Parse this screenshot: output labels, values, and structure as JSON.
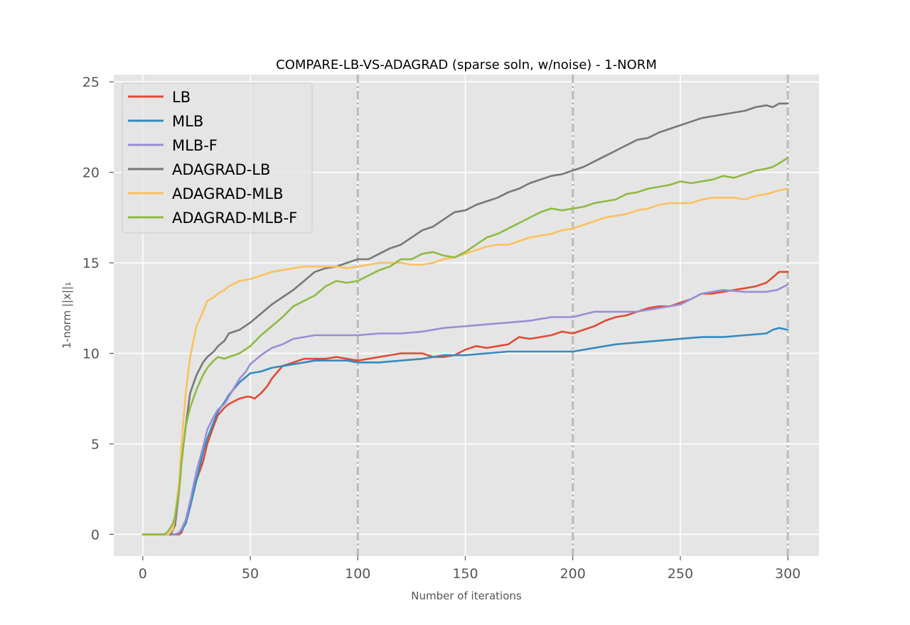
{
  "chart_data": {
    "type": "line",
    "title": "COMPARE-LB-VS-ADAGRAD (sparse soln, w/noise) - 1-NORM",
    "xlabel": "Number of iterations",
    "ylabel": "1-norm ||x||₁",
    "xlim": [
      -13.5,
      314.5
    ],
    "ylim": [
      -1.2,
      25.4
    ],
    "xticks": [
      0,
      50,
      100,
      150,
      200,
      250,
      300
    ],
    "yticks": [
      0,
      5,
      10,
      15,
      20,
      25
    ],
    "vlines": [
      100,
      200,
      300
    ],
    "grid": true,
    "legend_position": "top-left",
    "series": [
      {
        "name": "LB",
        "color": "#E24A33",
        "x": [
          0,
          10,
          15,
          17,
          18,
          20,
          22,
          25,
          28,
          30,
          33,
          35,
          38,
          40,
          45,
          48,
          50,
          52,
          55,
          58,
          60,
          65,
          70,
          75,
          80,
          85,
          90,
          95,
          100,
          105,
          110,
          115,
          120,
          125,
          130,
          135,
          140,
          145,
          150,
          155,
          160,
          165,
          170,
          175,
          180,
          185,
          190,
          195,
          200,
          205,
          210,
          215,
          220,
          225,
          230,
          235,
          240,
          245,
          250,
          255,
          260,
          265,
          270,
          275,
          280,
          285,
          290,
          293,
          296,
          300
        ],
        "y": [
          0,
          0,
          0,
          0,
          0.1,
          0.8,
          1.8,
          3.0,
          4.0,
          5.0,
          6.0,
          6.6,
          7.0,
          7.2,
          7.5,
          7.6,
          7.6,
          7.5,
          7.8,
          8.2,
          8.6,
          9.3,
          9.5,
          9.7,
          9.7,
          9.7,
          9.8,
          9.7,
          9.6,
          9.7,
          9.8,
          9.9,
          10.0,
          10.0,
          10.0,
          9.8,
          9.8,
          9.9,
          10.2,
          10.4,
          10.3,
          10.4,
          10.5,
          10.9,
          10.8,
          10.9,
          11.0,
          11.2,
          11.1,
          11.3,
          11.5,
          11.8,
          12.0,
          12.1,
          12.3,
          12.5,
          12.6,
          12.6,
          12.8,
          13.0,
          13.3,
          13.3,
          13.4,
          13.5,
          13.6,
          13.7,
          13.9,
          14.2,
          14.5,
          14.5
        ]
      },
      {
        "name": "MLB",
        "color": "#348ABD",
        "x": [
          0,
          10,
          15,
          17,
          18,
          20,
          22,
          25,
          28,
          30,
          33,
          35,
          38,
          40,
          45,
          48,
          50,
          55,
          60,
          65,
          70,
          75,
          80,
          85,
          90,
          95,
          100,
          110,
          120,
          130,
          140,
          150,
          160,
          170,
          180,
          190,
          200,
          210,
          220,
          230,
          240,
          250,
          260,
          270,
          280,
          290,
          293,
          296,
          300
        ],
        "y": [
          0,
          0,
          0,
          0.1,
          0.2,
          0.6,
          1.5,
          3.0,
          4.5,
          5.3,
          6.2,
          6.8,
          7.3,
          7.7,
          8.4,
          8.7,
          8.9,
          9.0,
          9.2,
          9.3,
          9.4,
          9.5,
          9.6,
          9.6,
          9.6,
          9.6,
          9.5,
          9.5,
          9.6,
          9.7,
          9.9,
          9.9,
          10.0,
          10.1,
          10.1,
          10.1,
          10.1,
          10.3,
          10.5,
          10.6,
          10.7,
          10.8,
          10.9,
          10.9,
          11.0,
          11.1,
          11.3,
          11.4,
          11.3
        ]
      },
      {
        "name": "MLB-F",
        "color": "#988ED5",
        "x": [
          0,
          10,
          15,
          17,
          18,
          20,
          22,
          25,
          28,
          30,
          33,
          35,
          38,
          40,
          45,
          48,
          50,
          55,
          60,
          65,
          70,
          75,
          80,
          85,
          90,
          95,
          100,
          110,
          120,
          130,
          140,
          150,
          160,
          170,
          180,
          190,
          200,
          210,
          220,
          230,
          240,
          250,
          260,
          270,
          280,
          290,
          295,
          300
        ],
        "y": [
          0,
          0,
          0,
          0.1,
          0.3,
          0.8,
          1.8,
          3.5,
          4.8,
          5.8,
          6.5,
          6.9,
          7.2,
          7.6,
          8.6,
          9.0,
          9.4,
          9.9,
          10.3,
          10.5,
          10.8,
          10.9,
          11.0,
          11.0,
          11.0,
          11.0,
          11.0,
          11.1,
          11.1,
          11.2,
          11.4,
          11.5,
          11.6,
          11.7,
          11.8,
          12.0,
          12.0,
          12.3,
          12.3,
          12.3,
          12.5,
          12.7,
          13.3,
          13.5,
          13.4,
          13.4,
          13.5,
          13.8
        ]
      },
      {
        "name": "ADAGRAD-LB",
        "color": "#777777",
        "x": [
          0,
          10,
          13,
          15,
          17,
          18,
          20,
          22,
          25,
          28,
          30,
          33,
          35,
          38,
          40,
          45,
          50,
          55,
          60,
          65,
          70,
          75,
          80,
          85,
          90,
          95,
          100,
          105,
          110,
          115,
          120,
          125,
          130,
          135,
          140,
          145,
          150,
          155,
          160,
          165,
          170,
          175,
          180,
          185,
          190,
          195,
          200,
          205,
          210,
          215,
          220,
          225,
          230,
          235,
          240,
          245,
          250,
          255,
          260,
          265,
          270,
          275,
          280,
          285,
          290,
          293,
          296,
          300
        ],
        "y": [
          0,
          0,
          0,
          0.5,
          2.5,
          4.0,
          6.0,
          7.8,
          8.8,
          9.5,
          9.8,
          10.1,
          10.4,
          10.7,
          11.1,
          11.3,
          11.7,
          12.2,
          12.7,
          13.1,
          13.5,
          14.0,
          14.5,
          14.7,
          14.8,
          15.0,
          15.2,
          15.2,
          15.5,
          15.8,
          16.0,
          16.4,
          16.8,
          17.0,
          17.4,
          17.8,
          17.9,
          18.2,
          18.4,
          18.6,
          18.9,
          19.1,
          19.4,
          19.6,
          19.8,
          19.9,
          20.1,
          20.3,
          20.6,
          20.9,
          21.2,
          21.5,
          21.8,
          21.9,
          22.2,
          22.4,
          22.6,
          22.8,
          23.0,
          23.1,
          23.2,
          23.3,
          23.4,
          23.6,
          23.7,
          23.6,
          23.8,
          23.8
        ]
      },
      {
        "name": "ADAGRAD-MLB",
        "color": "#FBC15E",
        "x": [
          0,
          10,
          12,
          14,
          15,
          17,
          18,
          20,
          22,
          25,
          28,
          30,
          33,
          35,
          38,
          40,
          45,
          50,
          55,
          60,
          65,
          70,
          75,
          80,
          85,
          90,
          95,
          100,
          105,
          110,
          115,
          120,
          125,
          130,
          135,
          140,
          145,
          150,
          155,
          160,
          165,
          170,
          175,
          180,
          185,
          190,
          195,
          200,
          205,
          210,
          215,
          220,
          225,
          230,
          235,
          240,
          245,
          250,
          255,
          260,
          265,
          270,
          275,
          280,
          285,
          290,
          293,
          296,
          300
        ],
        "y": [
          0,
          0,
          0,
          0.3,
          1.0,
          3.0,
          5.0,
          7.8,
          9.8,
          11.5,
          12.3,
          12.9,
          13.1,
          13.3,
          13.5,
          13.7,
          14.0,
          14.1,
          14.3,
          14.5,
          14.6,
          14.7,
          14.8,
          14.8,
          14.8,
          14.8,
          14.7,
          14.8,
          14.9,
          15.0,
          15.0,
          15.0,
          14.9,
          14.9,
          15.0,
          15.2,
          15.3,
          15.5,
          15.7,
          15.9,
          16.0,
          16.0,
          16.2,
          16.4,
          16.5,
          16.6,
          16.8,
          16.9,
          17.1,
          17.3,
          17.5,
          17.6,
          17.7,
          17.9,
          18.0,
          18.2,
          18.3,
          18.3,
          18.3,
          18.5,
          18.6,
          18.6,
          18.6,
          18.5,
          18.7,
          18.8,
          18.9,
          19.0,
          19.1
        ]
      },
      {
        "name": "ADAGRAD-MLB-F",
        "color": "#8EBA42",
        "x": [
          0,
          10,
          12,
          14,
          15,
          17,
          18,
          20,
          22,
          25,
          28,
          30,
          33,
          35,
          38,
          40,
          45,
          50,
          55,
          60,
          65,
          70,
          75,
          80,
          85,
          90,
          95,
          100,
          105,
          110,
          115,
          120,
          125,
          130,
          135,
          140,
          145,
          150,
          155,
          160,
          165,
          170,
          175,
          180,
          185,
          190,
          195,
          200,
          205,
          210,
          215,
          220,
          225,
          230,
          235,
          240,
          245,
          250,
          255,
          260,
          265,
          270,
          275,
          280,
          285,
          290,
          293,
          296,
          300
        ],
        "y": [
          0,
          0,
          0.2,
          0.6,
          1.0,
          2.5,
          4.0,
          6.0,
          7.0,
          8.0,
          8.8,
          9.2,
          9.6,
          9.8,
          9.7,
          9.8,
          10.0,
          10.4,
          11.0,
          11.5,
          12.0,
          12.6,
          12.9,
          13.2,
          13.7,
          14.0,
          13.9,
          14.0,
          14.3,
          14.6,
          14.8,
          15.2,
          15.2,
          15.5,
          15.6,
          15.4,
          15.3,
          15.6,
          16.0,
          16.4,
          16.6,
          16.9,
          17.2,
          17.5,
          17.8,
          18.0,
          17.9,
          18.0,
          18.1,
          18.3,
          18.4,
          18.5,
          18.8,
          18.9,
          19.1,
          19.2,
          19.3,
          19.5,
          19.4,
          19.5,
          19.6,
          19.8,
          19.7,
          19.9,
          20.1,
          20.2,
          20.3,
          20.5,
          20.8
        ]
      }
    ]
  }
}
